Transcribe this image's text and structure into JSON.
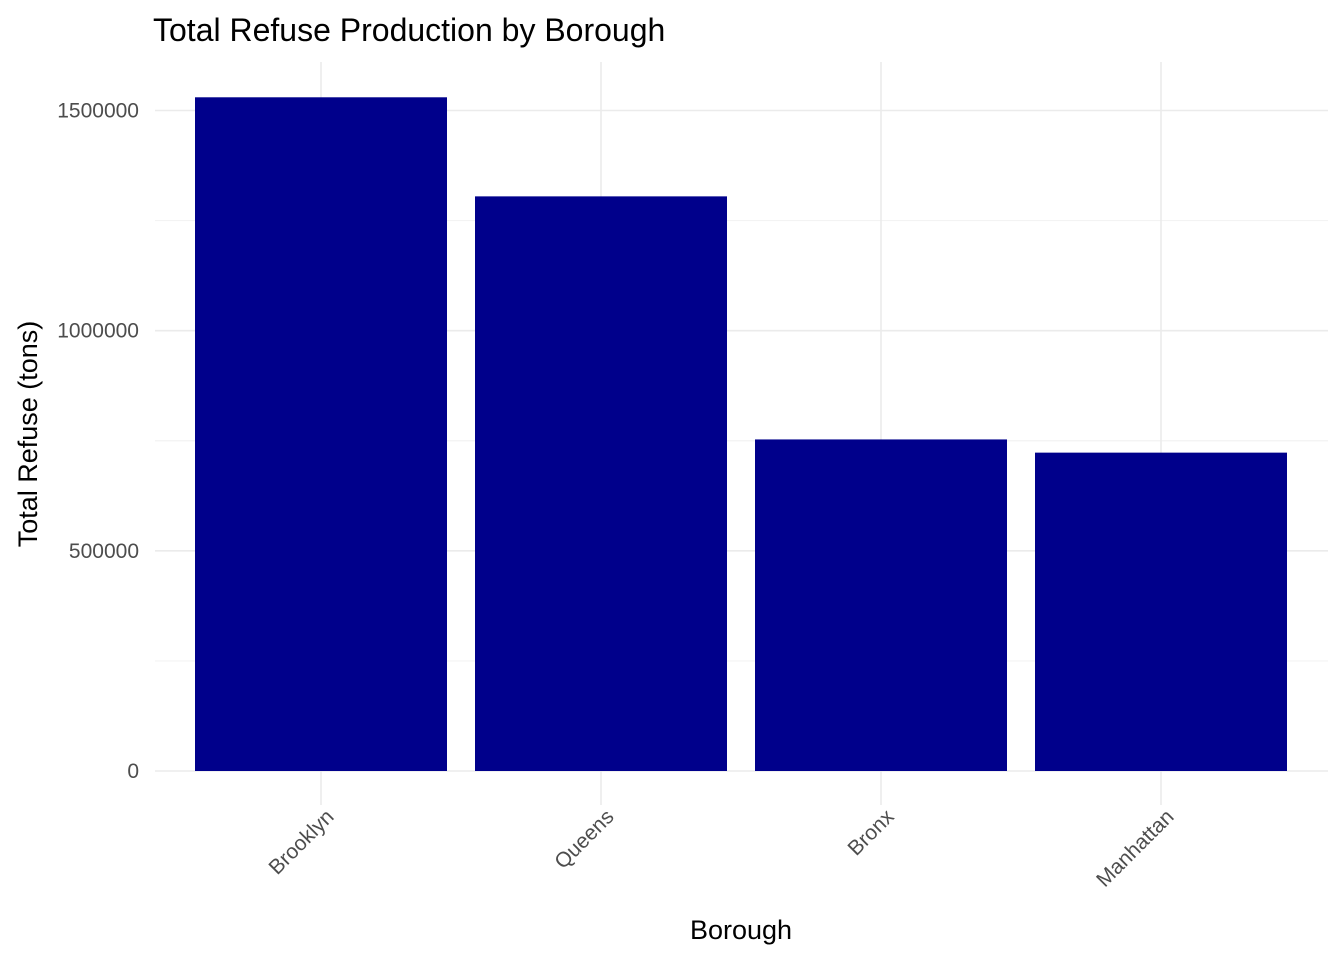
{
  "chart_data": {
    "type": "bar",
    "title": "Total Refuse Production by Borough",
    "xlabel": "Borough",
    "ylabel": "Total Refuse (tons)",
    "categories": [
      "Brooklyn",
      "Queens",
      "Bronx",
      "Manhattan"
    ],
    "values": [
      1530000,
      1305000,
      753000,
      723000
    ],
    "ylim": [
      0,
      1600000
    ],
    "yticks": [
      0,
      500000,
      1000000,
      1500000
    ],
    "ytick_labels": [
      "0",
      "500000",
      "1000000",
      "1500000"
    ],
    "grid": true,
    "legend": "none",
    "bar_color": "#00008B",
    "theme": "minimal"
  }
}
